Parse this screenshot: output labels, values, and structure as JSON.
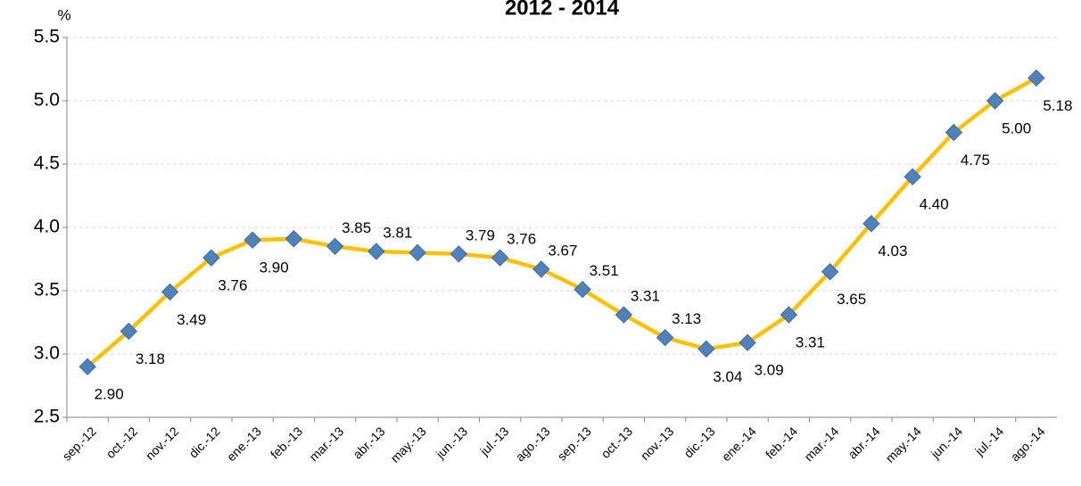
{
  "chart_data": {
    "type": "line",
    "title": "2012 - 2014",
    "y_axis_label": "%",
    "categories": [
      "sep.-12",
      "oct.-12",
      "nov.-12",
      "dic.-12",
      "ene.-13",
      "feb.-13",
      "mar.-13",
      "abr.-13",
      "may.-13",
      "jun.-13",
      "jul.-13",
      "ago.-13",
      "sep.-13",
      "oct.-13",
      "nov.-13",
      "dic.-13",
      "ene.-14",
      "feb.-14",
      "mar.-14",
      "abr.-14",
      "may.-14",
      "jun.-14",
      "jul.-14",
      "ago.-14"
    ],
    "series": [
      {
        "name": "%",
        "color": "#ffc000",
        "marker_color": "#4f81bd",
        "values": [
          2.9,
          3.18,
          3.49,
          3.76,
          3.9,
          3.91,
          3.85,
          3.81,
          3.8,
          3.79,
          3.76,
          3.67,
          3.51,
          3.31,
          3.13,
          3.04,
          3.09,
          3.31,
          3.65,
          4.03,
          4.4,
          4.75,
          5.0,
          5.18
        ],
        "value_labels": [
          "2.90",
          "3.18",
          "3.49",
          "3.76",
          "3.90",
          null,
          "3.85",
          "3.81",
          null,
          "3.79",
          "3.76",
          "3.67",
          "3.51",
          "3.31",
          "3.13",
          "3.04",
          "3.09",
          "3.31",
          "3.65",
          "4.03",
          "4.40",
          "4.75",
          "5.00",
          "5.18"
        ]
      }
    ],
    "ylim": [
      2.5,
      5.5
    ],
    "yticks": [
      2.5,
      {
        "value": 3,
        "label": "3.0"
      },
      3.5,
      {
        "value": 4,
        "label": "4.0"
      },
      4.5,
      {
        "value": 5,
        "label": "5.0"
      },
      5.5
    ],
    "grid": true
  }
}
